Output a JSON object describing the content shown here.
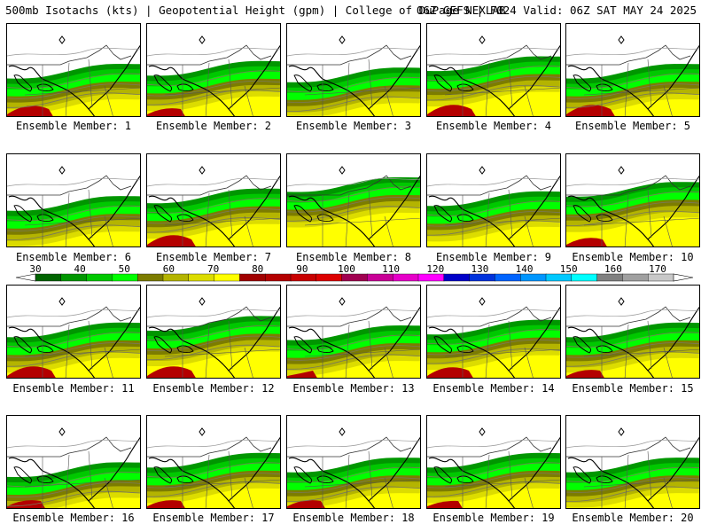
{
  "header": {
    "left": "500mb Isotachs (kts) | Geopotential Height (gpm) | College of DuPage NEXLAB",
    "right": "06Z GEFS | F024 Valid: 06Z SAT MAY 24 2025"
  },
  "colors": {
    "c30": "#006400",
    "c40": "#009600",
    "c45": "#00c800",
    "c50": "#00ff00",
    "c55": "#7c7c00",
    "c60": "#b4b400",
    "c65": "#dcdc00",
    "c70": "#ffff00",
    "c75": "#a00000",
    "c80": "#b40000",
    "c85": "#c80000",
    "c90": "#dc0000",
    "c95": "#a00050",
    "c100": "#c80096",
    "c110": "#e600c8",
    "c120": "#ff00ff",
    "c130": "#0000c8",
    "c140": "#0064dc",
    "c150": "#0096ff",
    "c160": "#00ffff",
    "c170": "#808080"
  },
  "colorbar": {
    "ticks": [
      "30",
      "40",
      "50",
      "60",
      "70",
      "80",
      "90",
      "100",
      "110",
      "120",
      "130",
      "140",
      "150",
      "160",
      "170"
    ],
    "fills": [
      "#006400",
      "#009600",
      "#00c800",
      "#00ff00",
      "#7c7c00",
      "#b4b400",
      "#dcdc00",
      "#ffff00",
      "#a00000",
      "#b40000",
      "#c80000",
      "#dc0000",
      "#a00050",
      "#c80096",
      "#e600c8",
      "#ff00ff",
      "#0000c8",
      "#0032dc",
      "#0064ff",
      "#0096ff",
      "#00c8ff",
      "#00ffff",
      "#808080",
      "#a0a0a0",
      "#c8c8c8"
    ]
  },
  "members": [
    {
      "label": "Ensemble Member: 1",
      "red": 0.9,
      "greenTop": 0.58
    },
    {
      "label": "Ensemble Member: 2",
      "red": 0.6,
      "greenTop": 0.55
    },
    {
      "label": "Ensemble Member: 3",
      "red": 0.0,
      "greenTop": 0.62
    },
    {
      "label": "Ensemble Member: 4",
      "red": 1.0,
      "greenTop": 0.5
    },
    {
      "label": "Ensemble Member: 5",
      "red": 1.0,
      "greenTop": 0.58
    },
    {
      "label": "Ensemble Member: 6",
      "red": 0.0,
      "greenTop": 0.6
    },
    {
      "label": "Ensemble Member: 7",
      "red": 1.0,
      "greenTop": 0.52
    },
    {
      "label": "Ensemble Member: 8",
      "red": 0.0,
      "greenTop": 0.4
    },
    {
      "label": "Ensemble Member: 9",
      "red": 0.0,
      "greenTop": 0.55
    },
    {
      "label": "Ensemble Member: 10",
      "red": 0.7,
      "greenTop": 0.45
    },
    {
      "label": "Ensemble Member: 11",
      "red": 1.0,
      "greenTop": 0.55
    },
    {
      "label": "Ensemble Member: 12",
      "red": 1.0,
      "greenTop": 0.48
    },
    {
      "label": "Ensemble Member: 13",
      "red": 0.3,
      "greenTop": 0.58
    },
    {
      "label": "Ensemble Member: 14",
      "red": 0.9,
      "greenTop": 0.52
    },
    {
      "label": "Ensemble Member: 15",
      "red": 0.6,
      "greenTop": 0.55
    },
    {
      "label": "Ensemble Member: 16",
      "red": 0.6,
      "greenTop": 0.65
    },
    {
      "label": "Ensemble Member: 17",
      "red": 0.6,
      "greenTop": 0.55
    },
    {
      "label": "Ensemble Member: 18",
      "red": 0.6,
      "greenTop": 0.6
    },
    {
      "label": "Ensemble Member: 19",
      "red": 0.5,
      "greenTop": 0.55
    },
    {
      "label": "Ensemble Member: 20",
      "red": 0.0,
      "greenTop": 0.6
    }
  ]
}
